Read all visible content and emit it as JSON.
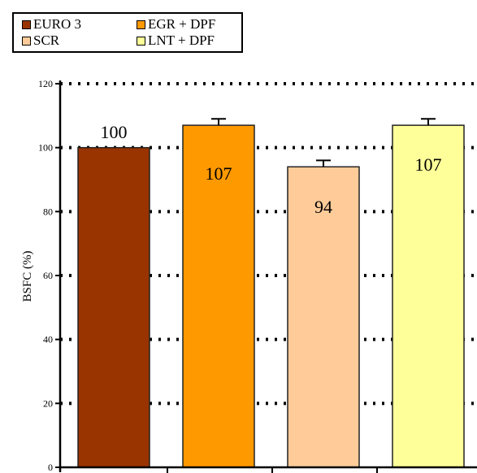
{
  "chart_data": {
    "type": "bar",
    "title": "",
    "ylabel": "BSFC (%)",
    "xlabel": "",
    "ylim": [
      0,
      120
    ],
    "yticks": [
      0,
      20,
      40,
      60,
      80,
      100,
      120
    ],
    "grid": true,
    "legend_position": "top-left",
    "series": [
      {
        "name": "EURO 3",
        "value": 100,
        "label": "100",
        "color": "#993300",
        "error": 0
      },
      {
        "name": "EGR + DPF",
        "value": 107,
        "label": "107",
        "color": "#ff9900",
        "error": 2
      },
      {
        "name": "SCR",
        "value": 94,
        "label": "94",
        "color": "#ffcc99",
        "error": 2
      },
      {
        "name": "LNT + DPF",
        "value": 107,
        "label": "107",
        "color": "#ffff99",
        "error": 2
      }
    ]
  }
}
